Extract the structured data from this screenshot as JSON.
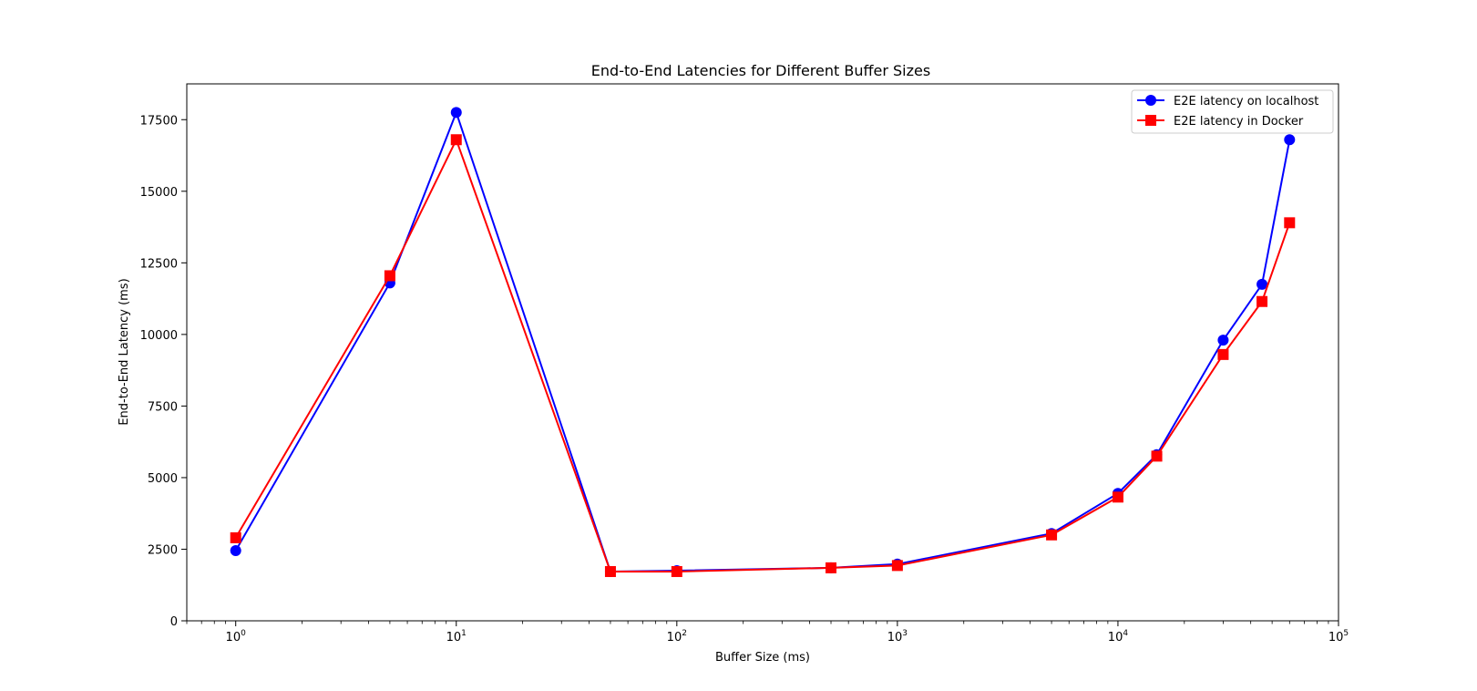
{
  "chart_data": {
    "type": "line",
    "title": "End-to-End Latencies for Different Buffer Sizes",
    "xlabel": "Buffer Size (ms)",
    "ylabel": "End-to-End Latency (ms)",
    "xscale": "log",
    "xlim": [
      0.6,
      100000
    ],
    "ylim": [
      0,
      18750
    ],
    "yticks": [
      0,
      2500,
      5000,
      7500,
      10000,
      12500,
      15000,
      17500
    ],
    "xticks": [
      {
        "value": 1,
        "base": "10",
        "exp": "0"
      },
      {
        "value": 10,
        "base": "10",
        "exp": "1"
      },
      {
        "value": 100,
        "base": "10",
        "exp": "2"
      },
      {
        "value": 1000,
        "base": "10",
        "exp": "3"
      },
      {
        "value": 10000,
        "base": "10",
        "exp": "4"
      },
      {
        "value": 100000,
        "base": "10",
        "exp": "5"
      }
    ],
    "grid": false,
    "legend_position": "top-right",
    "x": [
      1,
      5,
      10,
      50,
      100,
      500,
      1000,
      5000,
      10000,
      15000,
      30000,
      45000,
      60000
    ],
    "series": [
      {
        "name": "E2E latency on localhost",
        "color": "#0000ff",
        "marker": "circle",
        "values": [
          2450,
          11800,
          17750,
          1720,
          1750,
          1850,
          1980,
          3050,
          4450,
          5800,
          9800,
          11750,
          16800
        ]
      },
      {
        "name": "E2E latency in Docker",
        "color": "#ff0000",
        "marker": "square",
        "values": [
          2900,
          12050,
          16800,
          1720,
          1720,
          1850,
          1930,
          3000,
          4320,
          5750,
          9300,
          11150,
          13900
        ]
      }
    ]
  }
}
